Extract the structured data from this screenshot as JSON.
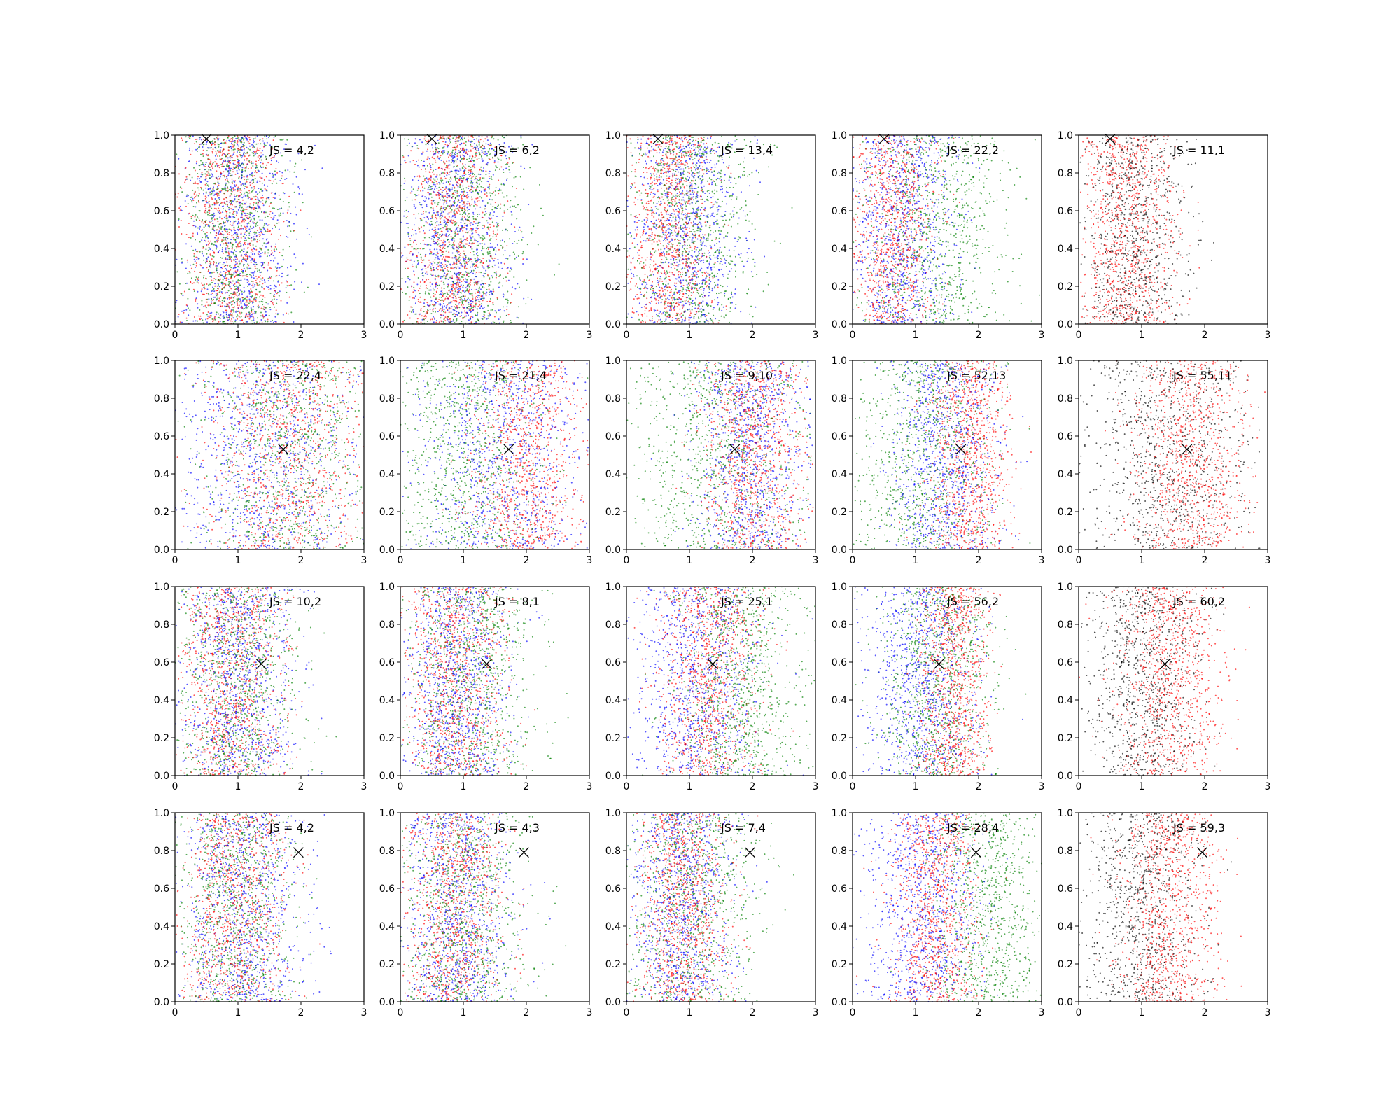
{
  "figure": {
    "layout": "4 rows x 5 columns grid of scatter subplots",
    "background": "#ffffff"
  },
  "palette": {
    "blue": "#0000ff",
    "red": "#ff0000",
    "green": "#008000",
    "black": "#000000"
  },
  "chart_data": [
    {
      "type": "scatter",
      "annotation": "JS = 4,2",
      "xlim": [
        0,
        3
      ],
      "ylim": [
        0,
        1
      ],
      "xticks": [
        "0",
        "1",
        "2",
        "3"
      ],
      "yticks": [
        "0.0",
        "0.2",
        "0.4",
        "0.6",
        "0.8",
        "1.0"
      ],
      "marker": {
        "symbol": "x",
        "x": 0.5,
        "y": 0.98
      },
      "series": [
        {
          "color": "blue",
          "center": 1.0,
          "spread": 0.45
        },
        {
          "color": "green",
          "center": 0.95,
          "spread": 0.42
        },
        {
          "color": "red",
          "center": 0.9,
          "spread": 0.4
        }
      ]
    },
    {
      "type": "scatter",
      "annotation": "JS = 6,2",
      "xlim": [
        0,
        3
      ],
      "ylim": [
        0,
        1
      ],
      "xticks": [
        "0",
        "1",
        "2",
        "3"
      ],
      "yticks": [
        "0.0",
        "0.2",
        "0.4",
        "0.6",
        "0.8",
        "1.0"
      ],
      "marker": {
        "symbol": "x",
        "x": 0.5,
        "y": 0.98
      },
      "series": [
        {
          "color": "blue",
          "center": 0.9,
          "spread": 0.42
        },
        {
          "color": "green",
          "center": 1.0,
          "spread": 0.48
        },
        {
          "color": "red",
          "center": 0.85,
          "spread": 0.38
        }
      ]
    },
    {
      "type": "scatter",
      "annotation": "JS = 13,4",
      "xlim": [
        0,
        3
      ],
      "ylim": [
        0,
        1
      ],
      "xticks": [
        "0",
        "1",
        "2",
        "3"
      ],
      "yticks": [
        "0.0",
        "0.2",
        "0.4",
        "0.6",
        "0.8",
        "1.0"
      ],
      "marker": {
        "symbol": "x",
        "x": 0.5,
        "y": 0.98
      },
      "series": [
        {
          "color": "blue",
          "center": 0.95,
          "spread": 0.45
        },
        {
          "color": "green",
          "center": 1.05,
          "spread": 0.5
        },
        {
          "color": "red",
          "center": 0.7,
          "spread": 0.35
        }
      ]
    },
    {
      "type": "scatter",
      "annotation": "JS = 22,2",
      "xlim": [
        0,
        3
      ],
      "ylim": [
        0,
        1
      ],
      "xticks": [
        "0",
        "1",
        "2",
        "3"
      ],
      "yticks": [
        "0.0",
        "0.2",
        "0.4",
        "0.6",
        "0.8",
        "1.0"
      ],
      "marker": {
        "symbol": "x",
        "x": 0.5,
        "y": 0.98
      },
      "series": [
        {
          "color": "blue",
          "center": 0.8,
          "spread": 0.42
        },
        {
          "color": "green",
          "center": 1.3,
          "spread": 0.55
        },
        {
          "color": "red",
          "center": 0.6,
          "spread": 0.35
        }
      ]
    },
    {
      "type": "scatter",
      "annotation": "JS = 11,1",
      "xlim": [
        0,
        3
      ],
      "ylim": [
        0,
        1
      ],
      "xticks": [
        "0",
        "1",
        "2",
        "3"
      ],
      "yticks": [
        "0.0",
        "0.2",
        "0.4",
        "0.6",
        "0.8",
        "1.0"
      ],
      "marker": {
        "symbol": "x",
        "x": 0.5,
        "y": 0.98
      },
      "series": [
        {
          "color": "red",
          "center": 0.75,
          "spread": 0.38
        },
        {
          "color": "black",
          "center": 0.85,
          "spread": 0.42
        }
      ]
    },
    {
      "type": "scatter",
      "annotation": "JS = 22,4",
      "xlim": [
        0,
        3
      ],
      "ylim": [
        0,
        1
      ],
      "xticks": [
        "0",
        "1",
        "2",
        "3"
      ],
      "yticks": [
        "0.0",
        "0.2",
        "0.4",
        "0.6",
        "0.8",
        "1.0"
      ],
      "marker": {
        "symbol": "x",
        "x": 1.72,
        "y": 0.53
      },
      "series": [
        {
          "color": "blue",
          "center": 1.4,
          "spread": 0.75
        },
        {
          "color": "green",
          "center": 1.9,
          "spread": 0.7
        },
        {
          "color": "red",
          "center": 1.8,
          "spread": 0.65
        }
      ]
    },
    {
      "type": "scatter",
      "annotation": "JS = 21,4",
      "xlim": [
        0,
        3
      ],
      "ylim": [
        0,
        1
      ],
      "xticks": [
        "0",
        "1",
        "2",
        "3"
      ],
      "yticks": [
        "0.0",
        "0.2",
        "0.4",
        "0.6",
        "0.8",
        "1.0"
      ],
      "marker": {
        "symbol": "x",
        "x": 1.72,
        "y": 0.53
      },
      "series": [
        {
          "color": "blue",
          "center": 1.6,
          "spread": 0.7
        },
        {
          "color": "green",
          "center": 1.0,
          "spread": 0.6
        },
        {
          "color": "red",
          "center": 2.0,
          "spread": 0.45
        }
      ]
    },
    {
      "type": "scatter",
      "annotation": "JS = 9,10",
      "xlim": [
        0,
        3
      ],
      "ylim": [
        0,
        1
      ],
      "xticks": [
        "0",
        "1",
        "2",
        "3"
      ],
      "yticks": [
        "0.0",
        "0.2",
        "0.4",
        "0.6",
        "0.8",
        "1.0"
      ],
      "marker": {
        "symbol": "x",
        "x": 1.72,
        "y": 0.53
      },
      "series": [
        {
          "color": "blue",
          "center": 1.95,
          "spread": 0.45
        },
        {
          "color": "green",
          "center": 1.4,
          "spread": 0.7
        },
        {
          "color": "red",
          "center": 2.0,
          "spread": 0.4
        }
      ]
    },
    {
      "type": "scatter",
      "annotation": "JS = 52,13",
      "xlim": [
        0,
        3
      ],
      "ylim": [
        0,
        1
      ],
      "xticks": [
        "0",
        "1",
        "2",
        "3"
      ],
      "yticks": [
        "0.0",
        "0.2",
        "0.4",
        "0.6",
        "0.8",
        "1.0"
      ],
      "marker": {
        "symbol": "x",
        "x": 1.72,
        "y": 0.53
      },
      "series": [
        {
          "color": "blue",
          "center": 1.45,
          "spread": 0.45
        },
        {
          "color": "green",
          "center": 1.1,
          "spread": 0.55
        },
        {
          "color": "red",
          "center": 1.85,
          "spread": 0.32
        }
      ]
    },
    {
      "type": "scatter",
      "annotation": "JS = 55,11",
      "xlim": [
        0,
        3
      ],
      "ylim": [
        0,
        1
      ],
      "xticks": [
        "0",
        "1",
        "2",
        "3"
      ],
      "yticks": [
        "0.0",
        "0.2",
        "0.4",
        "0.6",
        "0.8",
        "1.0"
      ],
      "marker": {
        "symbol": "x",
        "x": 1.72,
        "y": 0.53
      },
      "series": [
        {
          "color": "red",
          "center": 1.8,
          "spread": 0.45
        },
        {
          "color": "black",
          "center": 1.4,
          "spread": 0.65
        }
      ]
    },
    {
      "type": "scatter",
      "annotation": "JS = 10,2",
      "xlim": [
        0,
        3
      ],
      "ylim": [
        0,
        1
      ],
      "xticks": [
        "0",
        "1",
        "2",
        "3"
      ],
      "yticks": [
        "0.0",
        "0.2",
        "0.4",
        "0.6",
        "0.8",
        "1.0"
      ],
      "marker": {
        "symbol": "x",
        "x": 1.37,
        "y": 0.59
      },
      "series": [
        {
          "color": "blue",
          "center": 1.0,
          "spread": 0.45
        },
        {
          "color": "green",
          "center": 0.95,
          "spread": 0.48
        },
        {
          "color": "red",
          "center": 0.9,
          "spread": 0.4
        }
      ]
    },
    {
      "type": "scatter",
      "annotation": "JS = 8,1",
      "xlim": [
        0,
        3
      ],
      "ylim": [
        0,
        1
      ],
      "xticks": [
        "0",
        "1",
        "2",
        "3"
      ],
      "yticks": [
        "0.0",
        "0.2",
        "0.4",
        "0.6",
        "0.8",
        "1.0"
      ],
      "marker": {
        "symbol": "x",
        "x": 1.37,
        "y": 0.59
      },
      "series": [
        {
          "color": "blue",
          "center": 0.9,
          "spread": 0.42
        },
        {
          "color": "green",
          "center": 1.1,
          "spread": 0.5
        },
        {
          "color": "red",
          "center": 0.85,
          "spread": 0.4
        }
      ]
    },
    {
      "type": "scatter",
      "annotation": "JS = 25,1",
      "xlim": [
        0,
        3
      ],
      "ylim": [
        0,
        1
      ],
      "xticks": [
        "0",
        "1",
        "2",
        "3"
      ],
      "yticks": [
        "0.0",
        "0.2",
        "0.4",
        "0.6",
        "0.8",
        "1.0"
      ],
      "marker": {
        "symbol": "x",
        "x": 1.37,
        "y": 0.59
      },
      "series": [
        {
          "color": "blue",
          "center": 1.1,
          "spread": 0.5
        },
        {
          "color": "green",
          "center": 1.8,
          "spread": 0.5
        },
        {
          "color": "red",
          "center": 1.3,
          "spread": 0.4
        }
      ]
    },
    {
      "type": "scatter",
      "annotation": "JS = 56,2",
      "xlim": [
        0,
        3
      ],
      "ylim": [
        0,
        1
      ],
      "xticks": [
        "0",
        "1",
        "2",
        "3"
      ],
      "yticks": [
        "0.0",
        "0.2",
        "0.4",
        "0.6",
        "0.8",
        "1.0"
      ],
      "marker": {
        "symbol": "x",
        "x": 1.37,
        "y": 0.59
      },
      "series": [
        {
          "color": "blue",
          "center": 1.1,
          "spread": 0.45
        },
        {
          "color": "green",
          "center": 1.35,
          "spread": 0.45
        },
        {
          "color": "red",
          "center": 1.6,
          "spread": 0.3
        }
      ]
    },
    {
      "type": "scatter",
      "annotation": "JS = 60,2",
      "xlim": [
        0,
        3
      ],
      "ylim": [
        0,
        1
      ],
      "xticks": [
        "0",
        "1",
        "2",
        "3"
      ],
      "yticks": [
        "0.0",
        "0.2",
        "0.4",
        "0.6",
        "0.8",
        "1.0"
      ],
      "marker": {
        "symbol": "x",
        "x": 1.37,
        "y": 0.59
      },
      "series": [
        {
          "color": "red",
          "center": 1.45,
          "spread": 0.42
        },
        {
          "color": "black",
          "center": 1.0,
          "spread": 0.45
        }
      ]
    },
    {
      "type": "scatter",
      "annotation": "JS = 4,2",
      "xlim": [
        0,
        3
      ],
      "ylim": [
        0,
        1
      ],
      "xticks": [
        "0",
        "1",
        "2",
        "3"
      ],
      "yticks": [
        "0.0",
        "0.2",
        "0.4",
        "0.6",
        "0.8",
        "1.0"
      ],
      "marker": {
        "symbol": "x",
        "x": 1.96,
        "y": 0.79
      },
      "series": [
        {
          "color": "blue",
          "center": 1.05,
          "spread": 0.48
        },
        {
          "color": "green",
          "center": 0.95,
          "spread": 0.45
        },
        {
          "color": "red",
          "center": 0.95,
          "spread": 0.42
        }
      ]
    },
    {
      "type": "scatter",
      "annotation": "JS = 4,3",
      "xlim": [
        0,
        3
      ],
      "ylim": [
        0,
        1
      ],
      "xticks": [
        "0",
        "1",
        "2",
        "3"
      ],
      "yticks": [
        "0.0",
        "0.2",
        "0.4",
        "0.6",
        "0.8",
        "1.0"
      ],
      "marker": {
        "symbol": "x",
        "x": 1.96,
        "y": 0.79
      },
      "series": [
        {
          "color": "blue",
          "center": 0.9,
          "spread": 0.42
        },
        {
          "color": "green",
          "center": 1.0,
          "spread": 0.5
        },
        {
          "color": "red",
          "center": 0.85,
          "spread": 0.4
        }
      ]
    },
    {
      "type": "scatter",
      "annotation": "JS = 7,4",
      "xlim": [
        0,
        3
      ],
      "ylim": [
        0,
        1
      ],
      "xticks": [
        "0",
        "1",
        "2",
        "3"
      ],
      "yticks": [
        "0.0",
        "0.2",
        "0.4",
        "0.6",
        "0.8",
        "1.0"
      ],
      "marker": {
        "symbol": "x",
        "x": 1.96,
        "y": 0.79
      },
      "series": [
        {
          "color": "blue",
          "center": 0.85,
          "spread": 0.42
        },
        {
          "color": "green",
          "center": 1.0,
          "spread": 0.55
        },
        {
          "color": "red",
          "center": 0.9,
          "spread": 0.38
        }
      ]
    },
    {
      "type": "scatter",
      "annotation": "JS = 28,4",
      "xlim": [
        0,
        3
      ],
      "ylim": [
        0,
        1
      ],
      "xticks": [
        "0",
        "1",
        "2",
        "3"
      ],
      "yticks": [
        "0.0",
        "0.2",
        "0.4",
        "0.6",
        "0.8",
        "1.0"
      ],
      "marker": {
        "symbol": "x",
        "x": 1.96,
        "y": 0.79
      },
      "series": [
        {
          "color": "blue",
          "center": 1.1,
          "spread": 0.45
        },
        {
          "color": "green",
          "center": 2.1,
          "spread": 0.45
        },
        {
          "color": "red",
          "center": 1.3,
          "spread": 0.35
        }
      ]
    },
    {
      "type": "scatter",
      "annotation": "JS = 59,3",
      "xlim": [
        0,
        3
      ],
      "ylim": [
        0,
        1
      ],
      "xticks": [
        "0",
        "1",
        "2",
        "3"
      ],
      "yticks": [
        "0.0",
        "0.2",
        "0.4",
        "0.6",
        "0.8",
        "1.0"
      ],
      "marker": {
        "symbol": "x",
        "x": 1.96,
        "y": 0.79
      },
      "series": [
        {
          "color": "red",
          "center": 1.45,
          "spread": 0.4
        },
        {
          "color": "black",
          "center": 1.0,
          "spread": 0.45
        }
      ]
    }
  ]
}
